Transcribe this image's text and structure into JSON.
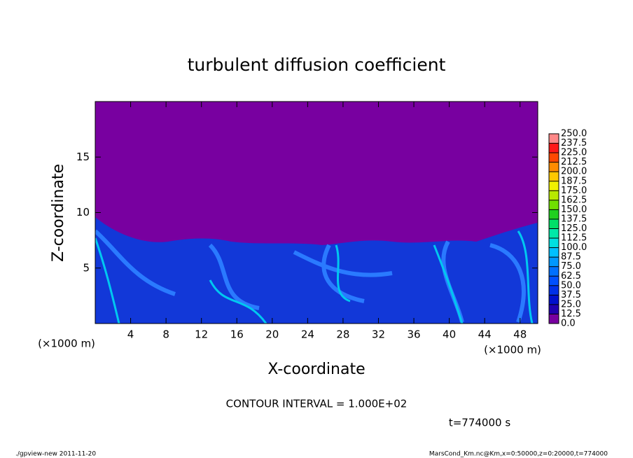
{
  "chart_data": {
    "type": "heatmap",
    "title": "turbulent diffusion coefficient",
    "xlabel": "X-coordinate",
    "ylabel": "Z-coordinate",
    "xunit": "(×1000 m)",
    "yunit": "(×1000 m)",
    "xlim": [
      0,
      50
    ],
    "ylim": [
      0,
      20
    ],
    "xticks": [
      4,
      8,
      12,
      16,
      20,
      24,
      28,
      32,
      36,
      40,
      44,
      48
    ],
    "yticks": [
      5,
      10,
      15
    ],
    "levels": [
      {
        "value": 0,
        "label": "0.0"
      },
      {
        "value": 12.5,
        "label": "12.5"
      },
      {
        "value": 25,
        "label": "25.0"
      },
      {
        "value": 37.5,
        "label": "37.5"
      },
      {
        "value": 50,
        "label": "50.0"
      },
      {
        "value": 62.5,
        "label": "62.5"
      },
      {
        "value": 75,
        "label": "75.0"
      },
      {
        "value": 87.5,
        "label": "87.5"
      },
      {
        "value": 100,
        "label": "100.0"
      },
      {
        "value": 112.5,
        "label": "112.5"
      },
      {
        "value": 125,
        "label": "125.0"
      },
      {
        "value": 137.5,
        "label": "137.5"
      },
      {
        "value": 150,
        "label": "150.0"
      },
      {
        "value": 162.5,
        "label": "162.5"
      },
      {
        "value": 175,
        "label": "175.0"
      },
      {
        "value": 187.5,
        "label": "187.5"
      },
      {
        "value": 200,
        "label": "200.0"
      },
      {
        "value": 212.5,
        "label": "212.5"
      },
      {
        "value": 225,
        "label": "225.0"
      },
      {
        "value": 237.5,
        "label": "237.5"
      },
      {
        "value": 250,
        "label": "250.0"
      }
    ],
    "colors": [
      "#7800a0",
      "#2000b0",
      "#0010cc",
      "#0030e8",
      "#0050ff",
      "#0070ff",
      "#0098ff",
      "#00c0ff",
      "#00e0e0",
      "#00e8a8",
      "#00e068",
      "#20d020",
      "#70e000",
      "#b8e800",
      "#f0f000",
      "#ffc800",
      "#ff8c00",
      "#ff4800",
      "#ff1818",
      "#ff8888"
    ],
    "annotations": [
      "CONTOUR INTERVAL = 1.000E+02",
      "t=774000 s",
      "./gpview-new  2011-11-20",
      "MarsCond_Km.nc@Km,x=0:50000,z=0:20000,t=774000"
    ]
  }
}
